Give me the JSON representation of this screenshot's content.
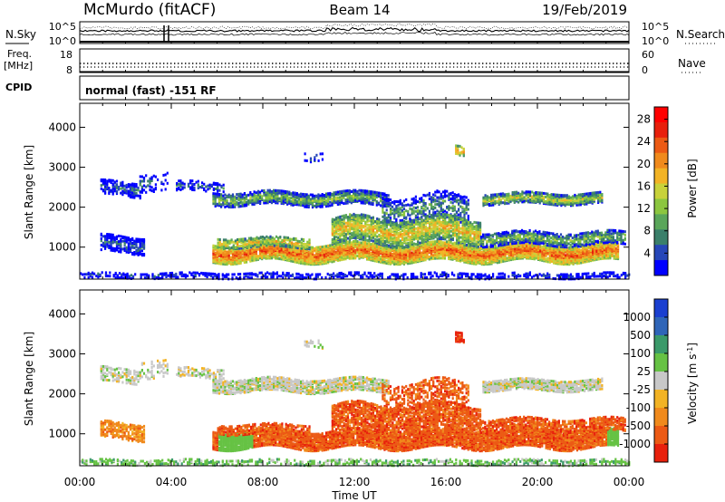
{
  "header": {
    "station": "McMurdo (fitACF)",
    "beam": "Beam 14",
    "date": "19/Feb/2019"
  },
  "noise_panel": {
    "left_label": "N.Sky",
    "right_label": "N.Search",
    "left_ticks": [
      "10^5",
      "10^0"
    ],
    "right_ticks": [
      "10^5",
      "10^0"
    ]
  },
  "freq_panel": {
    "left_label_1": "Freq.",
    "left_label_2": "[MHz]",
    "left_ticks": [
      "18",
      "8"
    ],
    "right_label": "Nave",
    "right_ticks": [
      "60",
      "0"
    ]
  },
  "cpid_panel": {
    "label": "CPID",
    "text": "normal (fast) -151 RF"
  },
  "chart_data": [
    {
      "type": "heatmap",
      "name": "power",
      "ylabel": "Slant Range [km]",
      "yticks": [
        "1000",
        "2000",
        "3000",
        "4000"
      ],
      "ylim": [
        200,
        4600
      ],
      "xlim": [
        0,
        24
      ],
      "colorbar": {
        "label": "Power [dB]",
        "ticks": [
          "4",
          "8",
          "12",
          "16",
          "20",
          "24",
          "28"
        ],
        "colors": [
          "#0000ff",
          "#2646b8",
          "#3a7f6a",
          "#5aa65a",
          "#8cc63f",
          "#c8d23a",
          "#f2b325",
          "#f08a1c",
          "#ec5a14",
          "#e8200c",
          "#ff0000"
        ]
      }
    },
    {
      "type": "heatmap",
      "name": "velocity",
      "ylabel": "Slant Range [km]",
      "yticks": [
        "1000",
        "2000",
        "3000",
        "4000"
      ],
      "ylim": [
        200,
        4600
      ],
      "xlim": [
        0,
        24
      ],
      "xlabel": "Time UT",
      "xticks": [
        "00:00",
        "04:00",
        "08:00",
        "12:00",
        "16:00",
        "20:00",
        "00:00"
      ],
      "colorbar": {
        "label": "Velocity [m s",
        "label_sup": "-1",
        "label_end": "]",
        "ticks": [
          "1000",
          "500",
          "100",
          "25",
          "-25",
          "-100",
          "-500",
          "-1000"
        ],
        "colors": [
          "#1a3fd0",
          "#2f65b8",
          "#3b9a6a",
          "#66c244",
          "#c8c8c8",
          "#f2b325",
          "#f08a1c",
          "#ec5a14",
          "#e8200c"
        ]
      }
    }
  ]
}
